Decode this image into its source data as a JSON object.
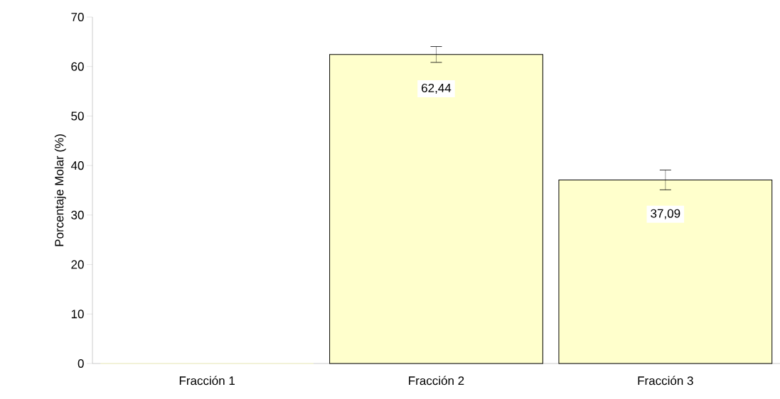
{
  "chart_data": {
    "type": "bar",
    "ylabel": "Porcentaje Molar (%)",
    "categories": [
      "Fracción 1",
      "Fracción 2",
      "Fracción 3"
    ],
    "values": [
      0,
      62.44,
      37.09
    ],
    "value_labels": [
      null,
      "62,44",
      "37,09"
    ],
    "errors": [
      null,
      1.6,
      2.0
    ],
    "color": "#ffffcc",
    "ylim": [
      0,
      70
    ],
    "yticks": [
      0,
      10,
      20,
      30,
      40,
      50,
      60,
      70
    ],
    "grid": false
  }
}
